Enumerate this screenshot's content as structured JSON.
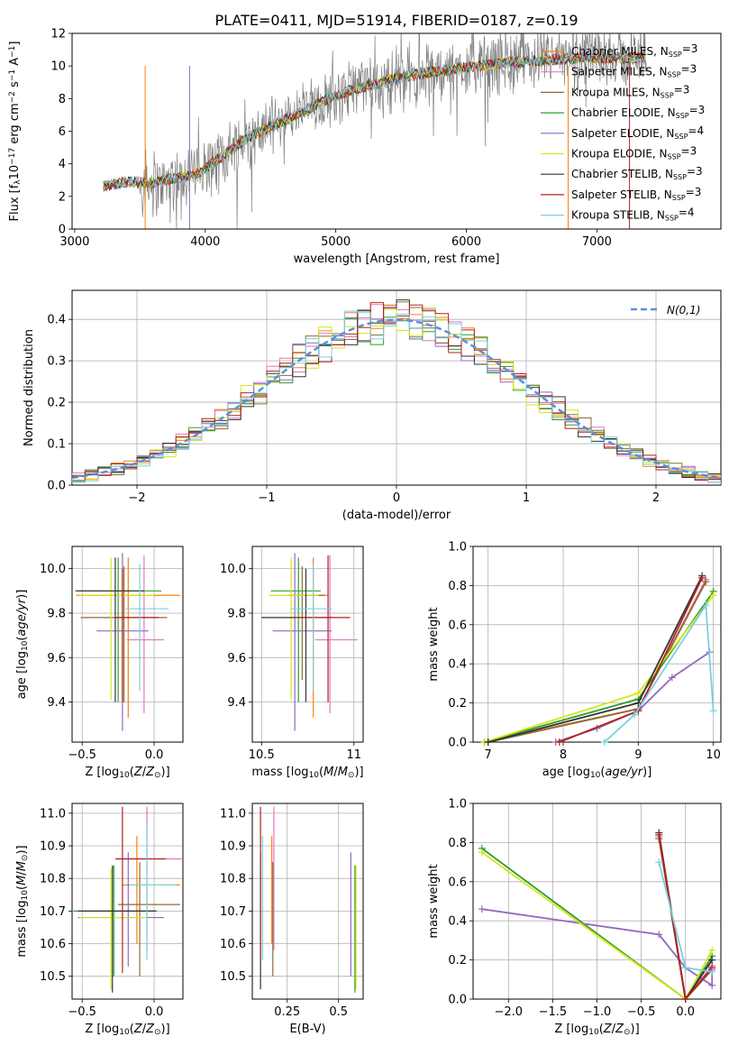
{
  "figure": {
    "title": "PLATE=0411, MJD=51914, FIBERID=0187, z=0.19"
  },
  "palette": {
    "chabrier_miles": "#ff7f0e",
    "salpeter_miles": "#e377c2",
    "kroupa_miles": "#8c6d31",
    "chabrier_elodie": "#2ca02c",
    "salpeter_elodie": "#9467bd",
    "kroupa_elodie": "#d4e61a",
    "chabrier_stelib": "#333333",
    "salpeter_stelib": "#b22222",
    "kroupa_stelib": "#7ad0e0",
    "data_spectrum": "#808080",
    "normal_curve": "#5b8fd6"
  },
  "chart_data": [
    {
      "id": "spectrum",
      "type": "line",
      "title": "PLATE=0411, MJD=51914, FIBERID=0187, z=0.19",
      "xlabel": "wavelength [Angstrom, rest frame]",
      "ylabel": "Flux [f_λ 10^-17 erg cm^-2 s^-1 A^-1]",
      "xlim": [
        2980,
        7950
      ],
      "ylim": [
        0,
        12
      ],
      "xticks": [
        3000,
        4000,
        5000,
        6000,
        7000
      ],
      "yticks": [
        0,
        2,
        4,
        6,
        8,
        10,
        12
      ],
      "grid": false,
      "legend_position": "right",
      "trend_x": [
        3220,
        3400,
        3600,
        3800,
        3950,
        4100,
        4300,
        4500,
        4700,
        4900,
        5100,
        5300,
        5500,
        5700,
        5900,
        6100,
        6300,
        6500,
        6700,
        6900,
        7100,
        7300
      ],
      "trend_y": [
        2.6,
        2.9,
        2.8,
        3.2,
        3.4,
        4.3,
        5.5,
        6.3,
        7.0,
        7.8,
        8.5,
        8.9,
        9.3,
        9.6,
        9.8,
        10.0,
        10.2,
        10.3,
        10.4,
        10.5,
        10.5,
        10.5
      ],
      "series": [
        {
          "name": "Chabrier MILES, N_SSP=3"
        },
        {
          "name": "Salpeter MILES, N_SSP=3"
        },
        {
          "name": "Kroupa MILES, N_SSP=3"
        },
        {
          "name": "Chabrier ELODIE, N_SSP=3"
        },
        {
          "name": "Salpeter ELODIE, N_SSP=4"
        },
        {
          "name": "Kroupa ELODIE, N_SSP=3"
        },
        {
          "name": "Chabrier STELIB, N_SSP=3"
        },
        {
          "name": "Salpeter STELIB, N_SSP=3"
        },
        {
          "name": "Kroupa STELIB, N_SSP=4"
        }
      ]
    },
    {
      "id": "residuals",
      "type": "line",
      "xlabel": "(data-model)/error",
      "ylabel": "Normed distribution",
      "xlim": [
        -2.5,
        2.5
      ],
      "ylim": [
        0,
        0.47
      ],
      "xticks": [
        -2,
        -1,
        0,
        1,
        2
      ],
      "xticklabels": [
        "−2",
        "−1",
        "0",
        "1",
        "2"
      ],
      "yticks": [
        0.0,
        0.1,
        0.2,
        0.3,
        0.4
      ],
      "grid": true,
      "legend_position": "top-right",
      "legend": "N(0,1)",
      "bin_width": 0.1
    },
    {
      "id": "age_vs_Z",
      "type": "scatter",
      "xlabel": "Z [log10(Z/Z⊙)]",
      "ylabel": "age [log10(age/yr)]",
      "xlim": [
        -0.57,
        0.2
      ],
      "ylim": [
        9.22,
        10.1
      ],
      "xticks": [
        -0.5,
        0.0
      ],
      "xticklabels": [
        "−0.5",
        "0.0"
      ],
      "yticks": [
        9.4,
        9.6,
        9.8,
        10.0
      ],
      "grid": true,
      "points": [
        {
          "x": -0.18,
          "y": 9.88,
          "xerr": [
            0.36,
            0.36
          ],
          "yerr": [
            0.55,
            0.17
          ],
          "color": "chabrier_miles"
        },
        {
          "x": -0.07,
          "y": 9.68,
          "xerr": [
            0.12,
            0.14
          ],
          "yerr": [
            0.33,
            0.38
          ],
          "color": "salpeter_miles"
        },
        {
          "x": -0.21,
          "y": 9.78,
          "xerr": [
            0.3,
            0.3
          ],
          "yerr": [
            0.38,
            0.23
          ],
          "color": "kroupa_miles"
        },
        {
          "x": -0.25,
          "y": 9.9,
          "xerr": [
            0.3,
            0.3
          ],
          "yerr": [
            0.5,
            0.15
          ],
          "color": "chabrier_elodie"
        },
        {
          "x": -0.22,
          "y": 9.72,
          "xerr": [
            0.18,
            0.18
          ],
          "yerr": [
            0.45,
            0.35
          ],
          "color": "salpeter_elodie"
        },
        {
          "x": -0.3,
          "y": 9.88,
          "xerr": [
            0.22,
            0.3
          ],
          "yerr": [
            0.47,
            0.17
          ],
          "color": "kroupa_elodie"
        },
        {
          "x": -0.27,
          "y": 9.9,
          "xerr": [
            0.27,
            0.2
          ],
          "yerr": [
            0.5,
            0.15
          ],
          "color": "chabrier_stelib"
        },
        {
          "x": -0.22,
          "y": 9.78,
          "xerr": [
            0.05,
            0.25
          ],
          "yerr": [
            0.38,
            0.22
          ],
          "color": "salpeter_stelib"
        },
        {
          "x": -0.1,
          "y": 9.82,
          "xerr": [
            0.1,
            0.2
          ],
          "yerr": [
            0.37,
            0.2
          ],
          "color": "kroupa_stelib"
        }
      ]
    },
    {
      "id": "age_vs_mass",
      "type": "scatter",
      "xlabel": "mass [log10(M/M⊙)]",
      "xlim": [
        10.45,
        11.05
      ],
      "ylim": [
        9.22,
        10.1
      ],
      "xticks": [
        10.5,
        11.0
      ],
      "yticks": [
        9.4,
        9.6,
        9.8,
        10.0
      ],
      "grid": true,
      "points": [
        {
          "x": 10.78,
          "y": 9.88,
          "xerr": [
            0.12,
            0.08
          ],
          "yerr": [
            0.55,
            0.17
          ],
          "color": "chabrier_miles"
        },
        {
          "x": 10.87,
          "y": 9.68,
          "xerr": [
            0.08,
            0.15
          ],
          "yerr": [
            0.33,
            0.38
          ],
          "color": "salpeter_miles"
        },
        {
          "x": 10.72,
          "y": 9.88,
          "xerr": [
            0.08,
            0.12
          ],
          "yerr": [
            0.38,
            0.13
          ],
          "color": "kroupa_miles"
        },
        {
          "x": 10.7,
          "y": 9.9,
          "xerr": [
            0.15,
            0.12
          ],
          "yerr": [
            0.5,
            0.15
          ],
          "color": "chabrier_elodie"
        },
        {
          "x": 10.68,
          "y": 9.72,
          "xerr": [
            0.12,
            0.2
          ],
          "yerr": [
            0.45,
            0.35
          ],
          "color": "salpeter_elodie"
        },
        {
          "x": 10.66,
          "y": 9.88,
          "xerr": [
            0.12,
            0.15
          ],
          "yerr": [
            0.47,
            0.17
          ],
          "color": "kroupa_elodie"
        },
        {
          "x": 10.74,
          "y": 9.78,
          "xerr": [
            0.24,
            0.14
          ],
          "yerr": [
            0.38,
            0.22
          ],
          "color": "chabrier_stelib"
        },
        {
          "x": 10.86,
          "y": 9.78,
          "xerr": [
            0.18,
            0.12
          ],
          "yerr": [
            0.38,
            0.28
          ],
          "color": "salpeter_stelib"
        },
        {
          "x": 10.78,
          "y": 9.82,
          "xerr": [
            0.12,
            0.1
          ],
          "yerr": [
            0.37,
            0.2
          ],
          "color": "kroupa_stelib"
        }
      ]
    },
    {
      "id": "weight_vs_age",
      "type": "line",
      "xlabel": "age [log10(age/yr)]",
      "ylabel": "mass weight",
      "xlim": [
        6.8,
        10.1
      ],
      "ylim": [
        0,
        1.0
      ],
      "xticks": [
        7,
        8,
        9,
        10
      ],
      "yticks": [
        0.0,
        0.2,
        0.4,
        0.6,
        0.8,
        1.0
      ],
      "grid": true,
      "series": [
        {
          "color": "chabrier_miles",
          "x": [
            6.95,
            9.0,
            9.9
          ],
          "y": [
            0.0,
            0.17,
            0.82
          ]
        },
        {
          "color": "salpeter_miles",
          "x": [
            7.0,
            9.0,
            9.9
          ],
          "y": [
            0.0,
            0.17,
            0.83
          ]
        },
        {
          "color": "kroupa_miles",
          "x": [
            7.0,
            9.0,
            9.9
          ],
          "y": [
            0.0,
            0.17,
            0.82
          ]
        },
        {
          "color": "chabrier_elodie",
          "x": [
            6.95,
            9.0,
            10.0
          ],
          "y": [
            0.0,
            0.22,
            0.77
          ]
        },
        {
          "color": "salpeter_elodie",
          "x": [
            7.9,
            8.45,
            9.0,
            9.45,
            9.95
          ],
          "y": [
            0.0,
            0.07,
            0.16,
            0.33,
            0.46
          ]
        },
        {
          "color": "kroupa_elodie",
          "x": [
            6.95,
            9.0,
            10.0
          ],
          "y": [
            0.0,
            0.25,
            0.75
          ]
        },
        {
          "color": "chabrier_stelib",
          "x": [
            7.0,
            9.0,
            9.85
          ],
          "y": [
            0.0,
            0.2,
            0.85
          ]
        },
        {
          "color": "salpeter_stelib",
          "x": [
            7.95,
            9.0,
            9.85
          ],
          "y": [
            0.0,
            0.16,
            0.84
          ]
        },
        {
          "color": "kroupa_stelib",
          "x": [
            8.55,
            8.95,
            9.9,
            10.0
          ],
          "y": [
            0.0,
            0.14,
            0.7,
            0.16
          ]
        }
      ]
    },
    {
      "id": "mass_vs_Z",
      "type": "scatter",
      "xlabel": "Z [log10(Z/Z⊙)]",
      "ylabel": "mass [log10(M/M⊙)]",
      "xlim": [
        -0.57,
        0.2
      ],
      "ylim": [
        10.43,
        11.03
      ],
      "xticks": [
        -0.5,
        0.0
      ],
      "xticklabels": [
        "−0.5",
        "0.0"
      ],
      "yticks": [
        10.5,
        10.6,
        10.7,
        10.8,
        10.9,
        11.0
      ],
      "grid": true,
      "points": [
        {
          "x": -0.12,
          "y": 10.78,
          "xerr": [
            0.1,
            0.3
          ],
          "yerr": [
            0.18,
            0.15
          ],
          "color": "chabrier_miles"
        },
        {
          "x": -0.05,
          "y": 10.86,
          "xerr": [
            0.22,
            0.25
          ],
          "yerr": [
            0.28,
            0.16
          ],
          "color": "salpeter_miles"
        },
        {
          "x": -0.1,
          "y": 10.72,
          "xerr": [
            0.15,
            0.28
          ],
          "yerr": [
            0.22,
            0.13
          ],
          "color": "kroupa_miles"
        },
        {
          "x": -0.28,
          "y": 10.7,
          "xerr": [
            0.28,
            0.3
          ],
          "yerr": [
            0.2,
            0.14
          ],
          "color": "chabrier_elodie"
        },
        {
          "x": -0.18,
          "y": 10.68,
          "xerr": [
            0.35,
            0.25
          ],
          "yerr": [
            0.15,
            0.2
          ],
          "color": "salpeter_elodie"
        },
        {
          "x": -0.3,
          "y": 10.68,
          "xerr": [
            0.22,
            0.25
          ],
          "yerr": [
            0.22,
            0.15
          ],
          "color": "kroupa_elodie"
        },
        {
          "x": -0.29,
          "y": 10.7,
          "xerr": [
            0.24,
            0.3
          ],
          "yerr": [
            0.25,
            0.14
          ],
          "color": "chabrier_stelib"
        },
        {
          "x": -0.22,
          "y": 10.86,
          "xerr": [
            0.05,
            0.3
          ],
          "yerr": [
            0.35,
            0.16
          ],
          "color": "salpeter_stelib"
        },
        {
          "x": -0.05,
          "y": 10.78,
          "xerr": [
            0.12,
            0.2
          ],
          "yerr": [
            0.23,
            0.19
          ],
          "color": "kroupa_stelib"
        }
      ]
    },
    {
      "id": "mass_vs_ebv",
      "type": "scatter",
      "xlabel": "E(B-V)",
      "xlim": [
        0.08,
        0.62
      ],
      "ylim": [
        10.43,
        11.03
      ],
      "xticks": [
        0.25,
        0.5
      ],
      "yticks": [
        10.5,
        10.6,
        10.7,
        10.8,
        10.9,
        11.0
      ],
      "grid": true,
      "points": [
        {
          "x": 0.175,
          "y": 10.78,
          "yerr": [
            0.18,
            0.15
          ],
          "color": "chabrier_miles"
        },
        {
          "x": 0.185,
          "y": 10.86,
          "yerr": [
            0.28,
            0.16
          ],
          "color": "salpeter_miles"
        },
        {
          "x": 0.18,
          "y": 10.72,
          "yerr": [
            0.22,
            0.13
          ],
          "color": "kroupa_miles"
        },
        {
          "x": 0.58,
          "y": 10.7,
          "yerr": [
            0.25,
            0.14
          ],
          "color": "chabrier_elodie"
        },
        {
          "x": 0.56,
          "y": 10.68,
          "yerr": [
            0.18,
            0.2
          ],
          "color": "salpeter_elodie"
        },
        {
          "x": 0.585,
          "y": 10.68,
          "yerr": [
            0.22,
            0.16
          ],
          "color": "kroupa_elodie"
        },
        {
          "x": 0.12,
          "y": 10.7,
          "yerr": [
            0.24,
            0.18
          ],
          "color": "chabrier_stelib"
        },
        {
          "x": 0.12,
          "y": 10.86,
          "yerr": [
            0.3,
            0.16
          ],
          "color": "salpeter_stelib"
        },
        {
          "x": 0.13,
          "y": 10.78,
          "yerr": [
            0.23,
            0.15
          ],
          "color": "kroupa_stelib"
        }
      ]
    },
    {
      "id": "weight_vs_Z",
      "type": "line",
      "xlabel": "Z [log10(Z/Z⊙)]",
      "ylabel": "mass weight",
      "xlim": [
        -2.4,
        0.4
      ],
      "ylim": [
        0,
        1.0
      ],
      "xticks": [
        -2.0,
        -1.5,
        -1.0,
        -0.5,
        0.0
      ],
      "xticklabels": [
        "−2.0",
        "−1.5",
        "−1.0",
        "−0.5",
        "0.0"
      ],
      "yticks": [
        0.0,
        0.2,
        0.4,
        0.6,
        0.8,
        1.0
      ],
      "grid": true,
      "series": [
        {
          "color": "chabrier_miles",
          "x": [
            -0.3,
            0.0,
            0.3
          ],
          "y": [
            0.82,
            0.0,
            0.17
          ]
        },
        {
          "color": "salpeter_miles",
          "x": [
            -0.3,
            0.0,
            0.3
          ],
          "y": [
            0.83,
            0.0,
            0.17
          ]
        },
        {
          "color": "kroupa_miles",
          "x": [
            -0.3,
            0.0,
            0.3
          ],
          "y": [
            0.82,
            0.0,
            0.15
          ]
        },
        {
          "color": "chabrier_elodie",
          "x": [
            -2.3,
            0.0,
            0.3
          ],
          "y": [
            0.77,
            0.0,
            0.22
          ]
        },
        {
          "color": "salpeter_elodie",
          "x": [
            -2.3,
            -0.3,
            0.0,
            0.3,
            0.3
          ],
          "y": [
            0.46,
            0.33,
            0.16,
            0.07,
            0.15
          ]
        },
        {
          "color": "kroupa_elodie",
          "x": [
            -2.3,
            0.0,
            0.3
          ],
          "y": [
            0.75,
            0.0,
            0.25
          ]
        },
        {
          "color": "chabrier_stelib",
          "x": [
            -0.3,
            0.0,
            0.3
          ],
          "y": [
            0.85,
            0.0,
            0.2
          ]
        },
        {
          "color": "salpeter_stelib",
          "x": [
            -0.3,
            0.0,
            0.3
          ],
          "y": [
            0.84,
            0.0,
            0.16
          ]
        },
        {
          "color": "kroupa_stelib",
          "x": [
            -0.3,
            0.0,
            0.3
          ],
          "y": [
            0.7,
            0.16,
            0.14
          ]
        }
      ]
    }
  ]
}
